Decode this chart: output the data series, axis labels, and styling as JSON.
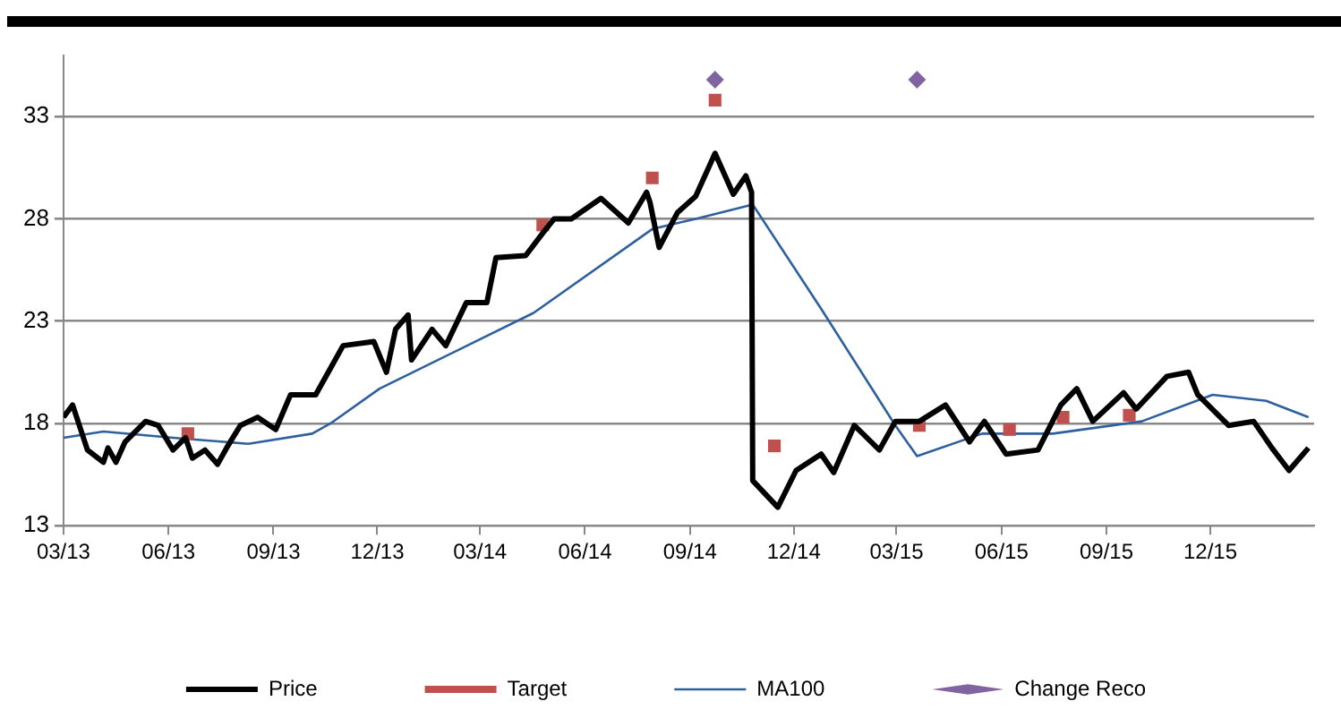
{
  "chart_data": {
    "type": "line",
    "xlim": [
      "2013-03-01",
      "2016-03-01"
    ],
    "xticks": [
      {
        "value": "2013-03-01",
        "label": "03/13"
      },
      {
        "value": "2013-06-01",
        "label": "06/13"
      },
      {
        "value": "2013-09-01",
        "label": "09/13"
      },
      {
        "value": "2013-12-01",
        "label": "12/13"
      },
      {
        "value": "2014-03-01",
        "label": "03/14"
      },
      {
        "value": "2014-06-01",
        "label": "06/14"
      },
      {
        "value": "2014-09-01",
        "label": "09/14"
      },
      {
        "value": "2014-12-01",
        "label": "12/14"
      },
      {
        "value": "2015-03-01",
        "label": "03/15"
      },
      {
        "value": "2015-06-01",
        "label": "06/15"
      },
      {
        "value": "2015-09-01",
        "label": "09/15"
      },
      {
        "value": "2015-12-01",
        "label": "12/15"
      }
    ],
    "ylim": [
      13,
      36
    ],
    "yticks": [
      13,
      18,
      23,
      28,
      33
    ],
    "grid": "y",
    "legend": "bottom",
    "series": [
      {
        "name": "Price",
        "type": "line",
        "color": "#000000",
        "marker": "none",
        "x": [
          "2013-03-01",
          "2013-03-09",
          "2013-03-22",
          "2013-04-05",
          "2013-04-09",
          "2013-04-16",
          "2013-04-24",
          "2013-05-12",
          "2013-05-23",
          "2013-06-05",
          "2013-06-16",
          "2013-06-22",
          "2013-07-03",
          "2013-07-14",
          "2013-07-23",
          "2013-08-03",
          "2013-08-18",
          "2013-09-03",
          "2013-09-16",
          "2013-10-08",
          "2013-10-22",
          "2013-11-01",
          "2013-11-28",
          "2013-12-09",
          "2013-12-17",
          "2013-12-28",
          "2013-12-31",
          "2014-01-18",
          "2014-01-30",
          "2014-02-17",
          "2014-03-07",
          "2014-03-15",
          "2014-04-10",
          "2014-04-25",
          "2014-05-05",
          "2014-05-20",
          "2014-06-15",
          "2014-07-09",
          "2014-07-25",
          "2014-07-28",
          "2014-08-05",
          "2014-08-21",
          "2014-09-06",
          "2014-09-23",
          "2014-10-09",
          "2014-10-20",
          "2014-10-25",
          "2014-10-26",
          "2014-11-17",
          "2014-12-03",
          "2014-12-25",
          "2015-01-05",
          "2015-01-23",
          "2015-02-14",
          "2015-02-28",
          "2015-03-21",
          "2015-04-13",
          "2015-05-04",
          "2015-05-17",
          "2015-06-05",
          "2015-07-03",
          "2015-07-23",
          "2015-08-06",
          "2015-08-20",
          "2015-09-16",
          "2015-09-27",
          "2015-10-24",
          "2015-11-12",
          "2015-11-20",
          "2015-12-17",
          "2016-01-08",
          "2016-01-24",
          "2016-02-08",
          "2016-02-25"
        ],
        "values": [
          18.3,
          18.9,
          16.7,
          16.1,
          16.8,
          16.1,
          17.1,
          18.1,
          17.9,
          16.7,
          17.3,
          16.3,
          16.7,
          16.0,
          16.9,
          17.9,
          18.3,
          17.7,
          19.4,
          19.4,
          20.8,
          21.8,
          22.0,
          20.5,
          22.6,
          23.3,
          21.1,
          22.6,
          21.8,
          23.9,
          23.9,
          26.1,
          26.2,
          27.3,
          28.0,
          28.0,
          29.0,
          27.8,
          29.3,
          28.8,
          26.6,
          28.3,
          29.1,
          31.2,
          29.2,
          30.1,
          29.3,
          15.2,
          13.9,
          15.7,
          16.5,
          15.6,
          17.9,
          16.7,
          18.1,
          18.1,
          18.9,
          17.1,
          18.1,
          16.5,
          16.7,
          18.9,
          19.7,
          18.1,
          19.5,
          18.7,
          20.3,
          20.5,
          19.4,
          17.9,
          18.1,
          16.8,
          15.7,
          16.8
        ]
      },
      {
        "name": "Target",
        "type": "scatter",
        "color": "#c0504d",
        "marker": "square",
        "x": [
          "2013-06-18",
          "2014-04-25",
          "2014-07-30",
          "2014-09-23",
          "2014-11-14",
          "2015-03-21",
          "2015-06-08",
          "2015-07-25",
          "2015-09-21"
        ],
        "values": [
          17.5,
          27.7,
          30.0,
          33.8,
          16.9,
          17.9,
          17.7,
          18.3,
          18.4
        ]
      },
      {
        "name": "MA100",
        "type": "line",
        "color": "#2e5f9e",
        "marker": "none",
        "x": [
          "2013-03-01",
          "2013-04-05",
          "2013-06-05",
          "2013-08-10",
          "2013-10-05",
          "2013-10-21",
          "2013-12-03",
          "2014-04-17",
          "2014-07-30",
          "2014-09-06",
          "2014-10-26",
          "2014-12-25",
          "2015-02-28",
          "2015-03-19",
          "2015-05-15",
          "2015-07-16",
          "2015-10-02",
          "2015-12-03",
          "2016-01-19",
          "2016-02-25"
        ],
        "values": [
          17.3,
          17.6,
          17.3,
          17.0,
          17.5,
          18.0,
          19.7,
          23.4,
          27.5,
          28.0,
          28.7,
          23.6,
          17.9,
          16.4,
          17.5,
          17.5,
          18.1,
          19.4,
          19.1,
          18.3
        ]
      },
      {
        "name": "Change Reco",
        "type": "scatter",
        "color": "#8064a2",
        "marker": "diamond",
        "x": [
          "2014-09-23",
          "2015-03-19"
        ],
        "values": [
          34.8,
          34.8
        ]
      }
    ]
  }
}
